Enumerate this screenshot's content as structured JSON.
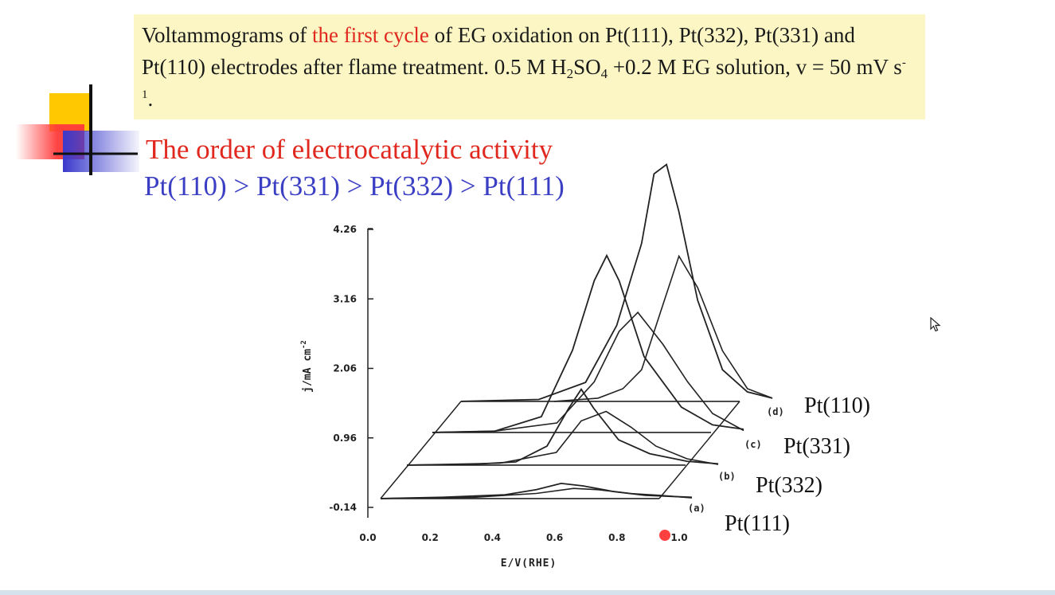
{
  "slide": {
    "caption_parts": [
      "Voltammograms of ",
      "the first cycle",
      " of EG oxidation on Pt(111), Pt(332), Pt(331) and Pt(110) electrodes after flame treatment. 0.5 M H",
      "2",
      "SO",
      "4",
      " +0.2 M EG solution, v = 50 mV s",
      "-1",
      "."
    ],
    "order_title": "The order of electrocatalytic activity",
    "order_sequence": "Pt(110) > Pt(331) > Pt(332) > Pt(111)"
  },
  "colors": {
    "caption_bg": "#fbf6c4",
    "highlight_red": "#e0281e",
    "sequence_blue": "#3b3fc4",
    "deco_yellow": "#ffc800",
    "deco_red": "#ff3a3a",
    "deco_blue": "#3a3acc",
    "laser_dot": "#ff1f1f"
  },
  "chart_data": {
    "type": "line",
    "style": "3D stacked waterfall (offset per electrode)",
    "xlabel": "E/V(RHE)",
    "ylabel": "j/mA cm",
    "ylabel_sup": "-2",
    "x_ticks": [
      "0.0",
      "0.2",
      "0.4",
      "0.6",
      "0.8",
      "1.0"
    ],
    "y_ticks": [
      "-0.14",
      "0.96",
      "2.06",
      "3.16",
      "4.26"
    ],
    "xlim": [
      0.0,
      1.0
    ],
    "ylim": [
      -0.14,
      4.26
    ],
    "series": [
      {
        "letter": "(a)",
        "name": "Pt(111)",
        "forward": [
          [
            0.0,
            0.0
          ],
          [
            0.2,
            0.02
          ],
          [
            0.4,
            0.06
          ],
          [
            0.5,
            0.14
          ],
          [
            0.58,
            0.24
          ],
          [
            0.65,
            0.2
          ],
          [
            0.75,
            0.11
          ],
          [
            0.85,
            0.05
          ],
          [
            1.0,
            0.02
          ]
        ],
        "backward": [
          [
            1.0,
            0.01
          ],
          [
            0.9,
            0.05
          ],
          [
            0.8,
            0.08
          ],
          [
            0.7,
            0.14
          ],
          [
            0.62,
            0.16
          ],
          [
            0.5,
            0.08
          ],
          [
            0.3,
            0.02
          ],
          [
            0.0,
            0.0
          ]
        ]
      },
      {
        "letter": "(b)",
        "name": "Pt(332)",
        "forward": [
          [
            0.0,
            0.0
          ],
          [
            0.2,
            0.01
          ],
          [
            0.35,
            0.05
          ],
          [
            0.45,
            0.3
          ],
          [
            0.52,
            0.9
          ],
          [
            0.56,
            1.2
          ],
          [
            0.6,
            0.9
          ],
          [
            0.68,
            0.4
          ],
          [
            0.78,
            0.18
          ],
          [
            0.9,
            0.06
          ],
          [
            1.0,
            0.02
          ]
        ],
        "backward": [
          [
            1.0,
            0.01
          ],
          [
            0.9,
            0.1
          ],
          [
            0.8,
            0.3
          ],
          [
            0.72,
            0.6
          ],
          [
            0.64,
            0.85
          ],
          [
            0.56,
            0.7
          ],
          [
            0.48,
            0.2
          ],
          [
            0.3,
            0.03
          ],
          [
            0.0,
            0.0
          ]
        ]
      },
      {
        "letter": "(c)",
        "name": "Pt(331)",
        "forward": [
          [
            0.0,
            0.0
          ],
          [
            0.2,
            0.02
          ],
          [
            0.35,
            0.25
          ],
          [
            0.45,
            1.3
          ],
          [
            0.52,
            2.4
          ],
          [
            0.56,
            2.8
          ],
          [
            0.6,
            2.4
          ],
          [
            0.68,
            1.2
          ],
          [
            0.8,
            0.4
          ],
          [
            0.9,
            0.12
          ],
          [
            1.0,
            0.05
          ]
        ],
        "backward": [
          [
            1.0,
            0.03
          ],
          [
            0.9,
            0.3
          ],
          [
            0.82,
            0.8
          ],
          [
            0.74,
            1.4
          ],
          [
            0.66,
            1.9
          ],
          [
            0.6,
            1.6
          ],
          [
            0.52,
            0.8
          ],
          [
            0.4,
            0.15
          ],
          [
            0.2,
            0.02
          ],
          [
            0.0,
            0.0
          ]
        ]
      },
      {
        "letter": "(d)",
        "name": "Pt(110)",
        "forward": [
          [
            0.0,
            0.0
          ],
          [
            0.25,
            0.03
          ],
          [
            0.4,
            0.3
          ],
          [
            0.5,
            1.2
          ],
          [
            0.58,
            2.5
          ],
          [
            0.62,
            3.6
          ],
          [
            0.66,
            3.75
          ],
          [
            0.7,
            3.0
          ],
          [
            0.76,
            1.6
          ],
          [
            0.84,
            0.5
          ],
          [
            0.92,
            0.15
          ],
          [
            1.0,
            0.05
          ]
        ],
        "backward": [
          [
            1.0,
            0.05
          ],
          [
            0.92,
            0.2
          ],
          [
            0.84,
            0.8
          ],
          [
            0.76,
            1.8
          ],
          [
            0.7,
            2.3
          ],
          [
            0.64,
            1.4
          ],
          [
            0.58,
            0.5
          ],
          [
            0.52,
            0.2
          ],
          [
            0.44,
            0.05
          ],
          [
            0.3,
            0.0
          ]
        ]
      }
    ]
  }
}
